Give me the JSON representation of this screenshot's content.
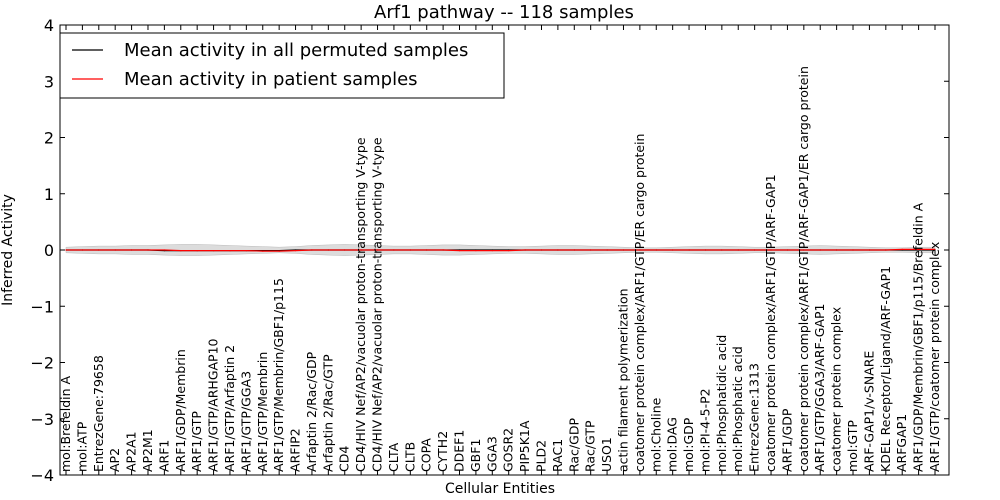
{
  "chart_data": {
    "type": "line",
    "title": "Arf1 pathway -- 118 samples",
    "xlabel": "Cellular Entities",
    "ylabel": "Inferred Activity",
    "ylim": [
      -4,
      4
    ],
    "yticks": [
      -4,
      -3,
      -2,
      -1,
      0,
      1,
      2,
      3,
      4
    ],
    "ytick_labels": [
      "−4",
      "−3",
      "−2",
      "−1",
      "0",
      "1",
      "2",
      "3",
      "4"
    ],
    "grid": false,
    "legend_position": "top-left",
    "categories": [
      "mol:Brefeldin A",
      "mol:ATP",
      "EntrezGene:79658",
      "AP2",
      "AP2A1",
      "AP2M1",
      "ARF1",
      "ARF1/GDP/Membrin",
      "ARF1/GTP",
      "ARF1/GTP/ARHGAP10",
      "ARF1/GTP/Arfaptin 2",
      "ARF1/GTP/GGA3",
      "ARF1/GTP/Membrin",
      "ARF1/GTP/Membrin/GBF1/p115",
      "ARFIP2",
      "Arfaptin 2/Rac/GDP",
      "Arfaptin 2/Rac/GTP",
      "CD4",
      "CD4/HIV Nef/AP2/vacuolar proton-transporting V-type",
      "CD4/HIV Nef/AP2/vacuolar proton-transporting V-type",
      "CLTA",
      "CLTB",
      "COPA",
      "CYTH2",
      "DDEF1",
      "GBF1",
      "GGA3",
      "GOSR2",
      "PIP5K1A",
      "PLD2",
      "RAC1",
      "Rac/GDP",
      "Rac/GTP",
      "USO1",
      "actin filament polymerization",
      "coatomer protein complex/ARF1/GTP/ER cargo protein",
      "mol:Choline",
      "mol:DAG",
      "mol:GDP",
      "mol:PI-4-5-P2",
      "mol:Phosphatidic acid",
      "mol:Phosphatic acid",
      "EntrezGene:1313",
      "coatomer protein complex/ARF1/GTP/ARF-GAP1",
      "ARF1/GDP",
      "coatomer protein complex/ARF1/GTP/ARF-GAP1/ER cargo protein",
      "ARF1/GTP/GGA3/ARF-GAP1",
      "coatomer protein complex",
      "mol:GTP",
      "ARF-GAP1/v-SNARE",
      "KDEL Receptor/Ligand/ARF-GAP1",
      "ARFGAP1",
      "ARF1/GDP/Membrin/GBF1/p115/Brefeldin A",
      "ARF1/GTP/coatomer protein complex"
    ],
    "series": [
      {
        "name": "Mean activity in all permuted samples",
        "color": "#000000",
        "values": [
          0,
          0,
          0,
          0,
          0,
          0,
          -0.01,
          -0.01,
          -0.01,
          -0.01,
          -0.01,
          -0.01,
          -0.01,
          -0.01,
          0,
          0,
          0,
          0,
          0,
          0,
          0,
          0,
          0,
          0,
          0,
          0,
          0,
          0,
          0,
          0,
          0,
          0,
          0,
          0,
          0,
          0,
          0,
          0,
          0,
          0,
          0,
          0,
          0,
          0,
          0,
          0,
          0,
          0,
          0,
          0,
          0,
          0,
          0,
          0
        ]
      },
      {
        "name": "Mean activity in patient samples",
        "color": "#ff0000",
        "values": [
          0,
          0,
          0,
          0,
          0,
          0,
          0,
          -0.01,
          -0.01,
          -0.01,
          -0.01,
          -0.01,
          -0.02,
          -0.02,
          -0.01,
          0,
          0,
          0,
          0,
          0,
          0,
          0,
          0,
          0,
          -0.01,
          -0.01,
          -0.01,
          -0.01,
          0,
          0,
          0,
          0,
          0,
          0,
          0,
          0,
          0,
          0,
          0,
          0,
          0,
          0,
          0,
          0,
          0,
          0,
          0,
          0,
          0,
          0,
          0,
          0.01,
          0.01,
          0.01
        ]
      }
    ],
    "band": {
      "color": "#d0d0d0",
      "lower": [
        -0.05,
        -0.06,
        -0.07,
        -0.07,
        -0.08,
        -0.08,
        -0.09,
        -0.1,
        -0.1,
        -0.09,
        -0.08,
        -0.07,
        -0.06,
        -0.05,
        -0.06,
        -0.08,
        -0.09,
        -0.1,
        -0.09,
        -0.08,
        -0.07,
        -0.07,
        -0.08,
        -0.09,
        -0.09,
        -0.08,
        -0.07,
        -0.06,
        -0.06,
        -0.07,
        -0.08,
        -0.08,
        -0.07,
        -0.06,
        -0.05,
        -0.04,
        -0.04,
        -0.05,
        -0.06,
        -0.07,
        -0.07,
        -0.06,
        -0.05,
        -0.05,
        -0.06,
        -0.07,
        -0.08,
        -0.07,
        -0.06,
        -0.05,
        -0.04,
        -0.04,
        -0.05,
        -0.05
      ],
      "upper": [
        0.05,
        0.06,
        0.07,
        0.07,
        0.08,
        0.08,
        0.09,
        0.1,
        0.1,
        0.09,
        0.08,
        0.07,
        0.06,
        0.05,
        0.06,
        0.08,
        0.09,
        0.1,
        0.09,
        0.08,
        0.07,
        0.07,
        0.08,
        0.09,
        0.09,
        0.08,
        0.07,
        0.06,
        0.06,
        0.07,
        0.08,
        0.08,
        0.07,
        0.06,
        0.05,
        0.04,
        0.04,
        0.05,
        0.06,
        0.07,
        0.07,
        0.06,
        0.05,
        0.05,
        0.06,
        0.07,
        0.08,
        0.07,
        0.06,
        0.05,
        0.04,
        0.04,
        0.05,
        0.05
      ]
    }
  }
}
